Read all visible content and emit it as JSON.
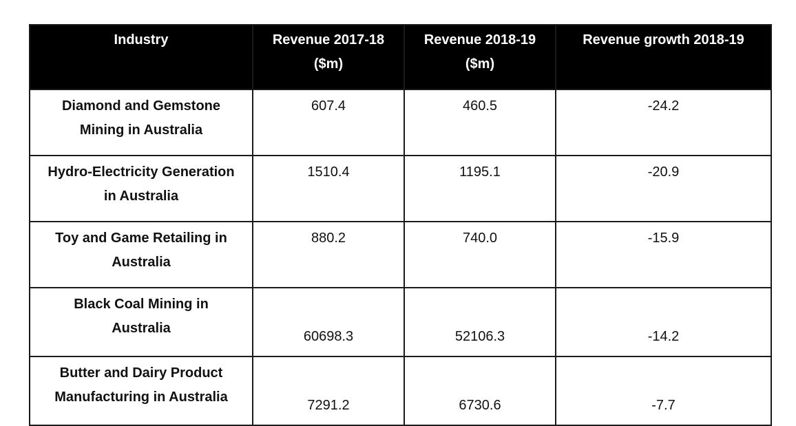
{
  "headers": [
    "Industry",
    "Revenue 2017-18 ($m)",
    "Revenue 2018-19 ($m)",
    "Revenue growth 2018-19"
  ],
  "rows": [
    {
      "industry": "Diamond and Gemstone Mining in Australia",
      "rev1718": "607.4",
      "rev1819": "460.5",
      "growth": "-24.2"
    },
    {
      "industry": "Hydro-Electricity Generation in Australia",
      "rev1718": "1510.4",
      "rev1819": "1195.1",
      "growth": "-20.9"
    },
    {
      "industry": "Toy and Game Retailing in Australia",
      "rev1718": "880.2",
      "rev1819": "740.0",
      "growth": "-15.9"
    },
    {
      "industry": "Black Coal Mining in Australia",
      "rev1718": "60698.3",
      "rev1819": "52106.3",
      "growth": "-14.2"
    },
    {
      "industry": "Butter and Dairy Product Manufacturing in Australia",
      "rev1718": "7291.2",
      "rev1819": "6730.6",
      "growth": "-7.7"
    }
  ]
}
